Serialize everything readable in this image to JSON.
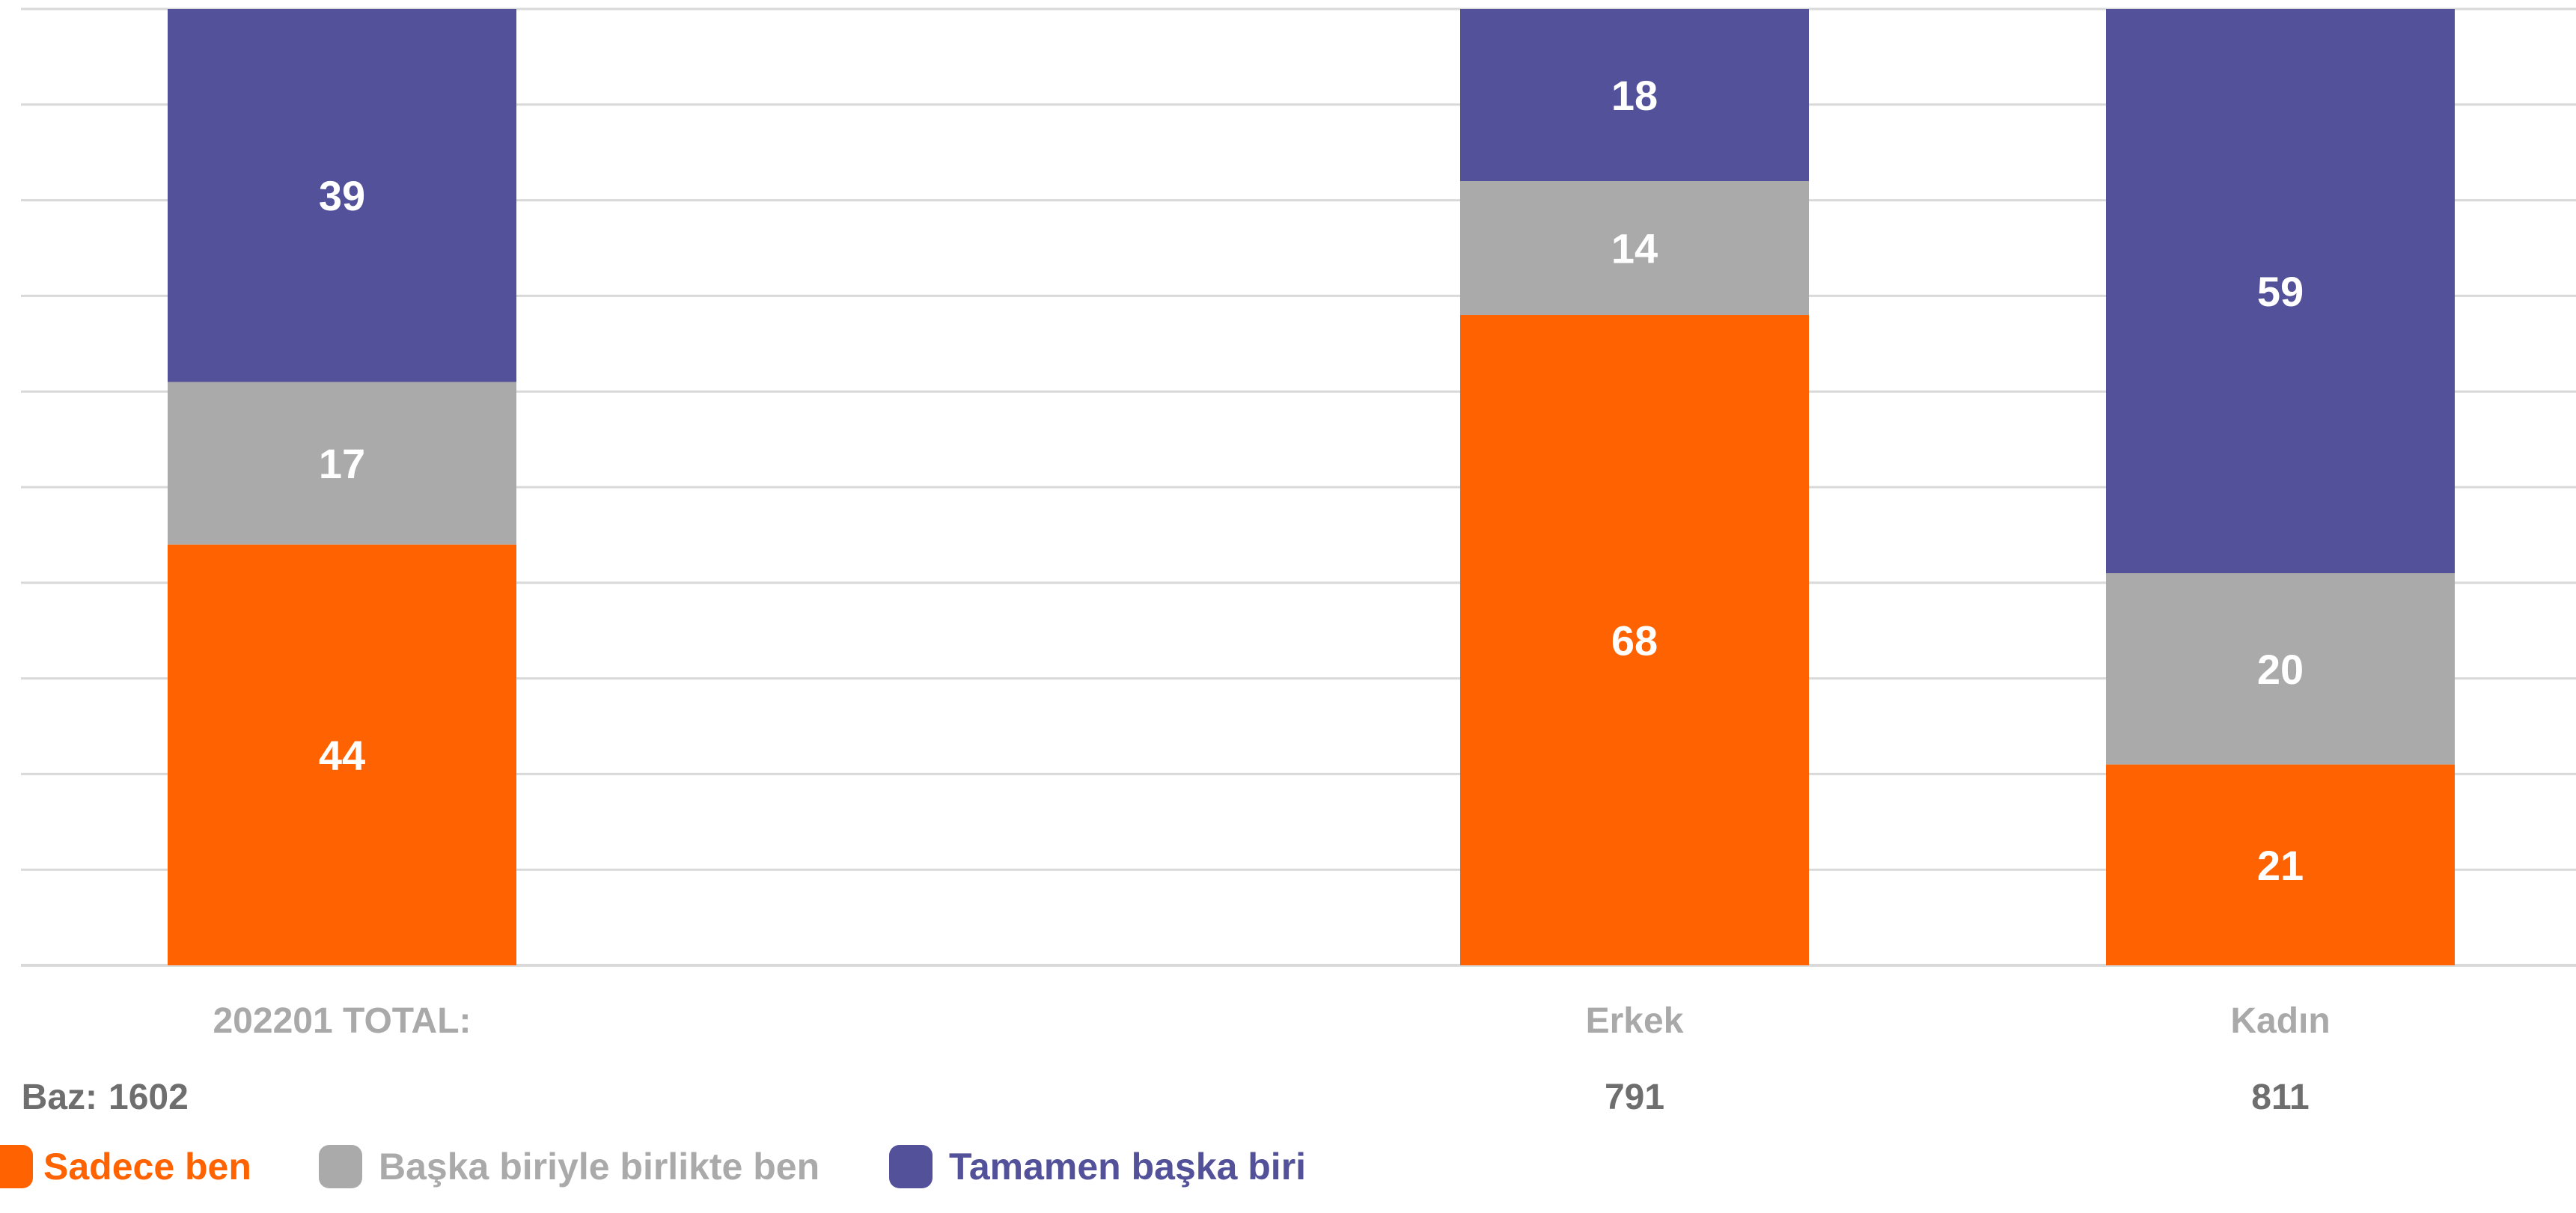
{
  "chart_data": {
    "type": "bar",
    "stacked": true,
    "categories": [
      "202201 TOTAL:",
      "Erkek",
      "Kadın"
    ],
    "base": {
      "label": "Baz:",
      "values": [
        "1602",
        "791",
        "811"
      ]
    },
    "series": [
      {
        "name": "Sadece ben",
        "color": "#ff6200",
        "values": [
          44,
          68,
          21
        ]
      },
      {
        "name": "Başka biriyle birlikte ben",
        "color": "#aaaaaa",
        "values": [
          17,
          14,
          20
        ]
      },
      {
        "name": "Tamamen başka biri",
        "color": "#525199",
        "values": [
          39,
          18,
          59
        ]
      }
    ],
    "ylim": [
      0,
      100
    ],
    "grid": true,
    "legend": "bottom-left",
    "colors": {
      "grid": "#d9d9d9",
      "category_text": "#a9a9a9",
      "base_text": "#6e6e6e",
      "segment_text": "#ffffff"
    }
  }
}
